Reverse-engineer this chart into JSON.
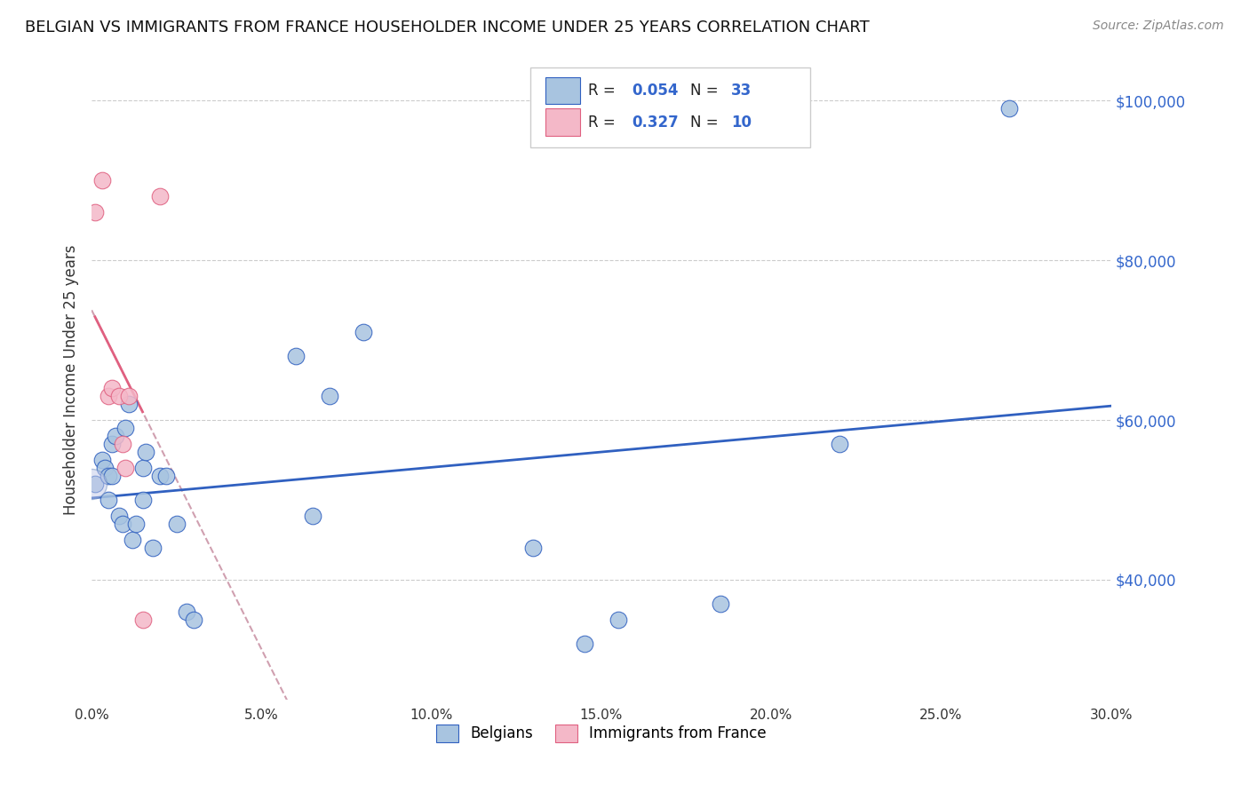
{
  "title": "BELGIAN VS IMMIGRANTS FROM FRANCE HOUSEHOLDER INCOME UNDER 25 YEARS CORRELATION CHART",
  "source": "Source: ZipAtlas.com",
  "ylabel": "Householder Income Under 25 years",
  "legend_label1": "Belgians",
  "legend_label2": "Immigrants from France",
  "r1": 0.054,
  "n1": 33,
  "r2": 0.327,
  "n2": 10,
  "xlim": [
    0.0,
    0.3
  ],
  "ylim": [
    25000,
    105000
  ],
  "yticks": [
    40000,
    60000,
    80000,
    100000
  ],
  "ytick_labels": [
    "$40,000",
    "$60,000",
    "$80,000",
    "$100,000"
  ],
  "color_belgian": "#a8c4e0",
  "color_france": "#f4b8c8",
  "color_trendline_belgian": "#3060c0",
  "color_trendline_france": "#e06080",
  "color_dashed": "#d0a0b0",
  "background": "#ffffff",
  "blue_dots_x": [
    0.001,
    0.003,
    0.004,
    0.005,
    0.005,
    0.006,
    0.006,
    0.007,
    0.008,
    0.009,
    0.01,
    0.011,
    0.012,
    0.013,
    0.015,
    0.015,
    0.016,
    0.018,
    0.02,
    0.022,
    0.025,
    0.028,
    0.03,
    0.06,
    0.065,
    0.07,
    0.08,
    0.13,
    0.145,
    0.155,
    0.185,
    0.22,
    0.27
  ],
  "blue_dots_y": [
    52000,
    55000,
    54000,
    53000,
    50000,
    53000,
    57000,
    58000,
    48000,
    47000,
    59000,
    62000,
    45000,
    47000,
    54000,
    50000,
    56000,
    44000,
    53000,
    53000,
    47000,
    36000,
    35000,
    68000,
    48000,
    63000,
    71000,
    44000,
    32000,
    35000,
    37000,
    57000,
    99000
  ],
  "pink_dots_x": [
    0.001,
    0.003,
    0.005,
    0.006,
    0.008,
    0.009,
    0.01,
    0.011,
    0.015,
    0.02
  ],
  "pink_dots_y": [
    86000,
    90000,
    63000,
    64000,
    63000,
    57000,
    54000,
    63000,
    35000,
    88000
  ]
}
